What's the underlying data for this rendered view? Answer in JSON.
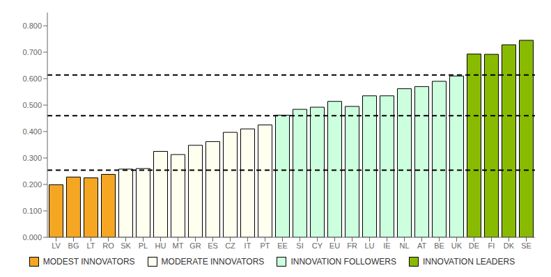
{
  "chart_data": {
    "type": "bar",
    "categories": [
      "LV",
      "BG",
      "LT",
      "RO",
      "SK",
      "PL",
      "HU",
      "MT",
      "GR",
      "ES",
      "CZ",
      "IT",
      "PT",
      "EE",
      "SI",
      "CY",
      "EU",
      "FR",
      "LU",
      "IE",
      "NL",
      "AT",
      "BE",
      "UK",
      "DE",
      "FI",
      "DK",
      "SE"
    ],
    "series": [
      {
        "name": "MODEST INNOVATORS",
        "color": "#F5A623",
        "values": [
          0.199,
          0.228,
          0.225,
          0.238,
          null,
          null,
          null,
          null,
          null,
          null,
          null,
          null,
          null,
          null,
          null,
          null,
          null,
          null,
          null,
          null,
          null,
          null,
          null,
          null,
          null,
          null,
          null,
          null
        ]
      },
      {
        "name": "MODERATE INNOVATORS",
        "color": "#FFFFF0",
        "values": [
          null,
          null,
          null,
          null,
          0.258,
          0.26,
          0.325,
          0.313,
          0.348,
          0.362,
          0.397,
          0.41,
          0.425,
          null,
          null,
          null,
          null,
          null,
          null,
          null,
          null,
          null,
          null,
          null,
          null,
          null,
          null,
          null
        ]
      },
      {
        "name": "INNOVATION FOLLOWERS",
        "color": "#CCFFDD",
        "values": [
          null,
          null,
          null,
          null,
          null,
          null,
          null,
          null,
          null,
          null,
          null,
          null,
          null,
          0.462,
          0.484,
          0.492,
          0.514,
          0.495,
          0.535,
          0.535,
          0.562,
          0.57,
          0.59,
          0.61,
          null,
          null,
          null,
          null
        ]
      },
      {
        "name": "INNOVATION LEADERS",
        "color": "#88BB00",
        "values": [
          null,
          null,
          null,
          null,
          null,
          null,
          null,
          null,
          null,
          null,
          null,
          null,
          null,
          null,
          null,
          null,
          null,
          null,
          null,
          null,
          null,
          null,
          null,
          null,
          0.693,
          0.692,
          0.728,
          0.745
        ]
      }
    ],
    "stacked": true,
    "reference_lines": [
      0.254,
      0.46,
      0.614
    ],
    "ylim": [
      0.0,
      0.85
    ],
    "yticks": [
      {
        "value": 0.0,
        "label": "0.000"
      },
      {
        "value": 0.1,
        "label": "0.100"
      },
      {
        "value": 0.2,
        "label": "0.200"
      },
      {
        "value": 0.3,
        "label": "0.300"
      },
      {
        "value": 0.4,
        "label": "0.400"
      },
      {
        "value": 0.5,
        "label": "0.500"
      },
      {
        "value": 0.6,
        "label": "0.600"
      },
      {
        "value": 0.7,
        "label": "0.700"
      },
      {
        "value": 0.8,
        "label": "0.800"
      }
    ],
    "grid": false,
    "legend": "bottom"
  }
}
